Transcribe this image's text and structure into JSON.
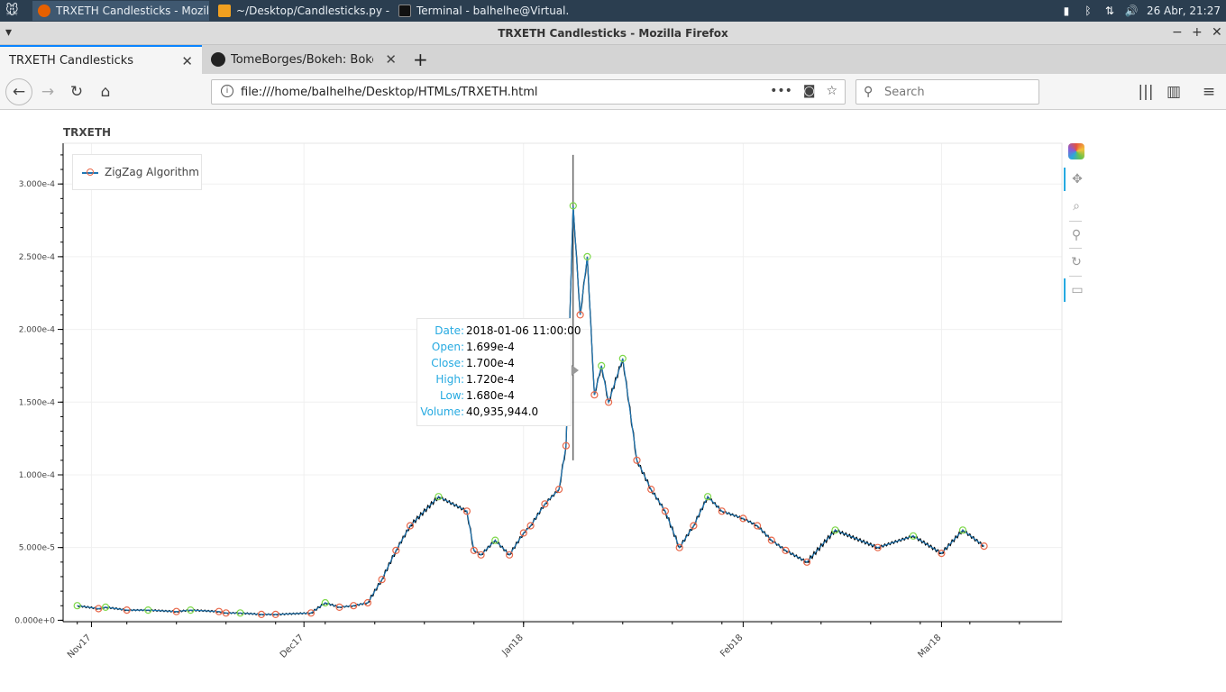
{
  "taskbar": {
    "tasks": [
      {
        "label": "TRXETH Candlesticks - Mozill..."
      },
      {
        "label": "~/Desktop/Candlesticks.py - ..."
      },
      {
        "label": "Terminal - balhelhe@Virtual..."
      }
    ],
    "clock": "26 Abr, 21:27"
  },
  "window": {
    "title": "TRXETH Candlesticks - Mozilla Firefox"
  },
  "tabs": [
    {
      "label": "TRXETH Candlesticks"
    },
    {
      "label": "TomeBorges/Bokeh: Bokeh re"
    }
  ],
  "navbar": {
    "url": "file:///home/balhelhe/Desktop/HTMLs/TRXETH.html",
    "search_placeholder": "Search"
  },
  "chart": {
    "title": "TRXETH",
    "legend": "ZigZag Algorithm",
    "tooltip": {
      "rows": [
        {
          "key": "Date:",
          "value": "2018-01-06 11:00:00"
        },
        {
          "key": "Open:",
          "value": "1.699e-4"
        },
        {
          "key": "Close:",
          "value": "1.700e-4"
        },
        {
          "key": "High:",
          "value": "1.720e-4"
        },
        {
          "key": "Low:",
          "value": "1.680e-4"
        },
        {
          "key": "Volume:",
          "value": "40,935,944.0"
        }
      ]
    }
  },
  "chart_data": {
    "type": "line",
    "title": "TRXETH",
    "yticks": [
      "0.000e+0",
      "5.000e-5",
      "1.000e-4",
      "1.500e-4",
      "2.000e-4",
      "2.500e-4",
      "3.000e-4"
    ],
    "xticks": [
      "Nov17",
      "Dec17",
      "Jan18",
      "Feb18",
      "Mar18"
    ],
    "ylim": [
      -1e-06,
      0.000328
    ],
    "series": [
      {
        "name": "ZigZag Algorithm",
        "x": [
          "2017-10-30",
          "2017-11-02",
          "2017-11-03",
          "2017-11-06",
          "2017-11-09",
          "2017-11-13",
          "2017-11-15",
          "2017-11-19",
          "2017-11-20",
          "2017-11-22",
          "2017-11-25",
          "2017-11-27",
          "2017-12-02",
          "2017-12-04",
          "2017-12-06",
          "2017-12-08",
          "2017-12-10",
          "2017-12-12",
          "2017-12-14",
          "2017-12-16",
          "2017-12-20",
          "2017-12-24",
          "2017-12-25",
          "2017-12-26",
          "2017-12-28",
          "2017-12-30",
          "2018-01-01",
          "2018-01-02",
          "2018-01-04",
          "2018-01-06",
          "2018-01-07",
          "2018-01-08",
          "2018-01-09",
          "2018-01-10",
          "2018-01-11",
          "2018-01-12",
          "2018-01-13",
          "2018-01-15",
          "2018-01-17",
          "2018-01-19",
          "2018-01-21",
          "2018-01-23",
          "2018-01-25",
          "2018-01-27",
          "2018-01-29",
          "2018-02-01",
          "2018-02-03",
          "2018-02-05",
          "2018-02-07",
          "2018-02-10",
          "2018-02-14",
          "2018-02-20",
          "2018-02-25",
          "2018-03-01",
          "2018-03-04",
          "2018-03-07"
        ],
        "y": [
          1e-05,
          8e-06,
          9e-06,
          7e-06,
          7e-06,
          6e-06,
          7e-06,
          6e-06,
          5e-06,
          5e-06,
          4e-06,
          4e-06,
          5e-06,
          1.2e-05,
          9e-06,
          1e-05,
          1.2e-05,
          2.8e-05,
          4.8e-05,
          6.5e-05,
          8.5e-05,
          7.5e-05,
          4.8e-05,
          4.5e-05,
          5.5e-05,
          4.5e-05,
          6e-05,
          6.5e-05,
          8e-05,
          9e-05,
          0.00012,
          0.000285,
          0.00021,
          0.00025,
          0.000155,
          0.000175,
          0.00015,
          0.00018,
          0.00011,
          9e-05,
          7.5e-05,
          5e-05,
          6.5e-05,
          8.5e-05,
          7.5e-05,
          7e-05,
          6.5e-05,
          5.5e-05,
          4.8e-05,
          4e-05,
          6.2e-05,
          5e-05,
          5.8e-05,
          4.6e-05,
          6.2e-05,
          5.1e-05
        ]
      }
    ]
  }
}
